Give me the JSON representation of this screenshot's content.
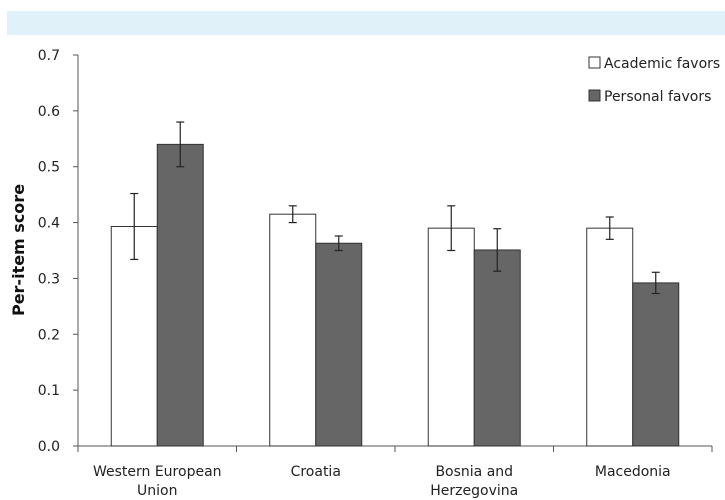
{
  "chart_data": {
    "type": "bar",
    "title": "",
    "xlabel": "",
    "ylabel": "Per-item score",
    "ylim": [
      0,
      0.7
    ],
    "yticks": [
      "0.0",
      "0.1",
      "0.2",
      "0.3",
      "0.4",
      "0.5",
      "0.6",
      "0.7"
    ],
    "categories": [
      [
        "Western European",
        "Union"
      ],
      [
        "Croatia"
      ],
      [
        "Bosnia and",
        "Herzegovina"
      ],
      [
        "Macedonia"
      ]
    ],
    "legend_position": "top-right",
    "grid": false,
    "series": [
      {
        "name": "Academic favors",
        "color": "#ffffff",
        "values": [
          0.393,
          0.415,
          0.39,
          0.39
        ],
        "error": [
          0.059,
          0.015,
          0.04,
          0.02
        ]
      },
      {
        "name": "Personal favors",
        "color": "#666666",
        "values": [
          0.54,
          0.363,
          0.351,
          0.292
        ],
        "error": [
          0.04,
          0.013,
          0.038,
          0.019
        ]
      }
    ]
  }
}
